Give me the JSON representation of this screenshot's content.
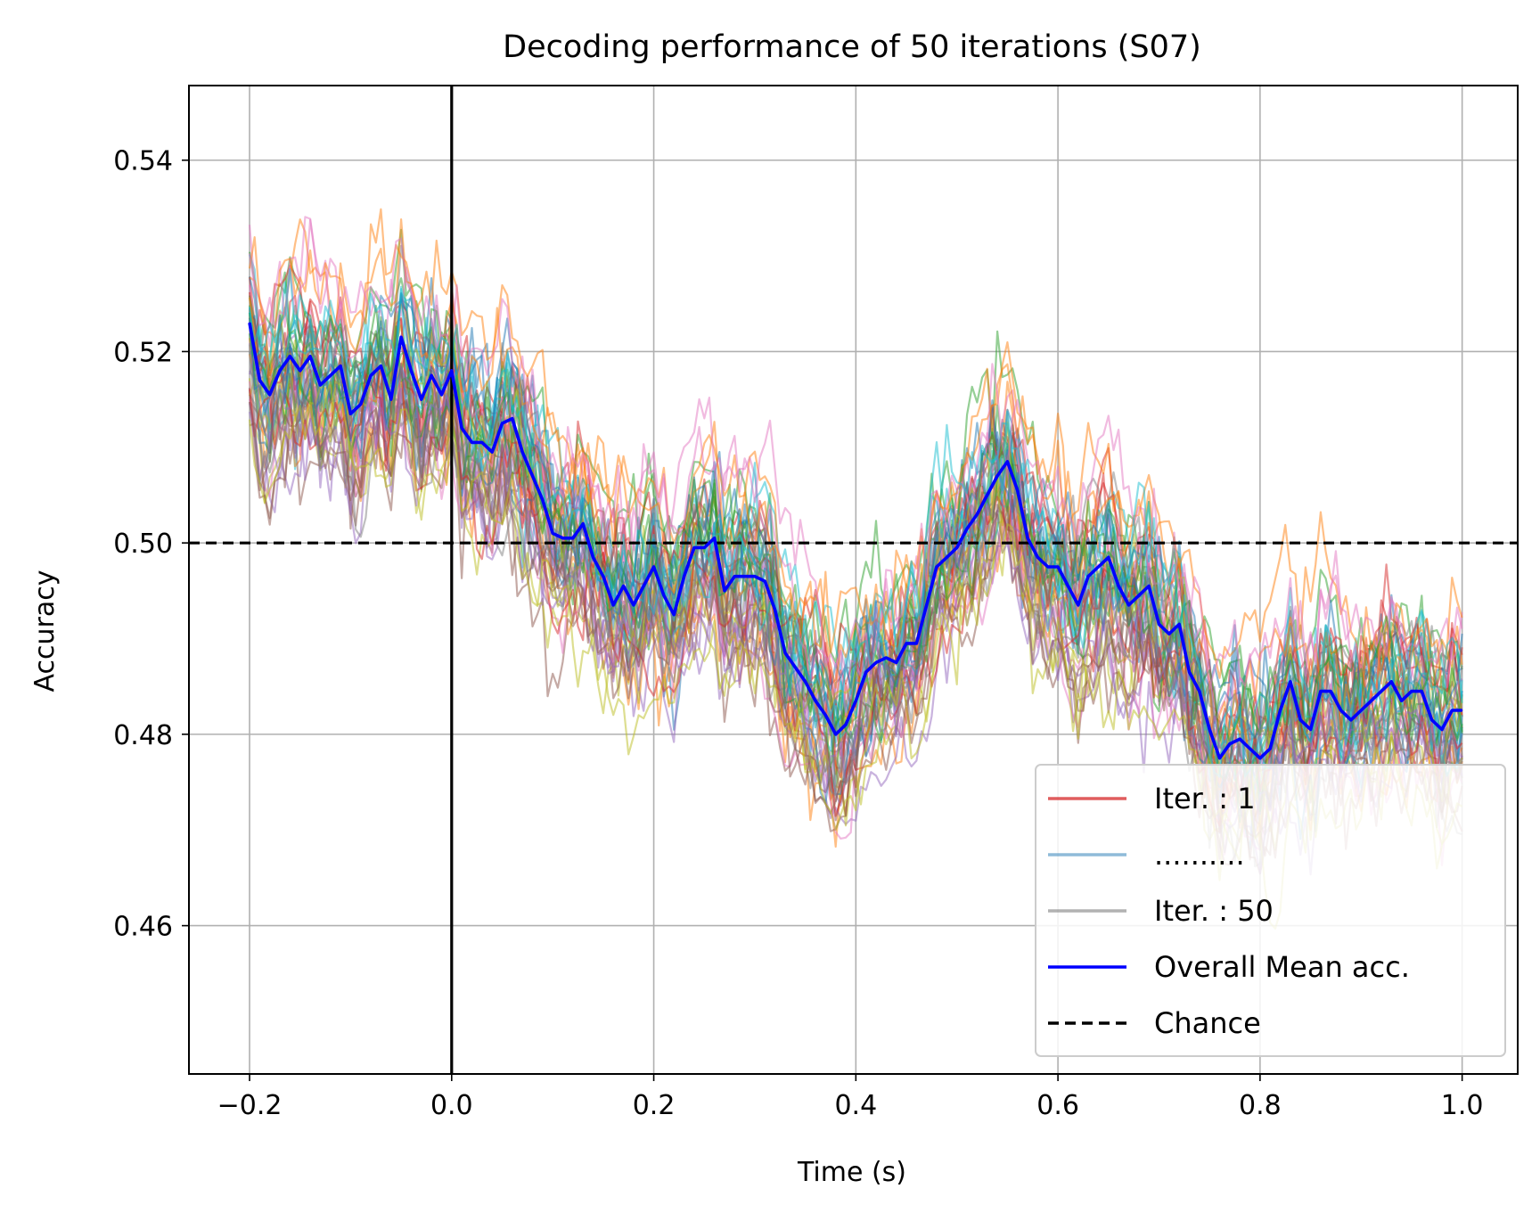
{
  "chart_data": {
    "type": "line",
    "title": "Decoding performance of 50 iterations (S07)",
    "xlabel": "Time (s)",
    "ylabel": "Accuracy",
    "xlim": [
      -0.26,
      1.055
    ],
    "ylim": [
      0.4445,
      0.5478
    ],
    "xticks": [
      -0.2,
      0.0,
      0.2,
      0.4,
      0.6,
      0.8,
      1.0
    ],
    "xtick_labels": [
      "−0.2",
      "0.0",
      "0.2",
      "0.4",
      "0.6",
      "0.8",
      "1.0"
    ],
    "yticks": [
      0.46,
      0.48,
      0.5,
      0.52,
      0.54
    ],
    "ytick_labels": [
      "0.46",
      "0.48",
      "0.50",
      "0.52",
      "0.54"
    ],
    "grid": true,
    "legend_position": "bottom-right",
    "vertical_line_x": 0.0,
    "chance_level": 0.5,
    "iteration_count": 50,
    "time_range": [
      -0.2,
      1.0
    ],
    "iteration_spread": 0.012,
    "iteration_colors": [
      "#d62728",
      "#1f77b4",
      "#ff7f0e",
      "#2ca02c",
      "#9467bd",
      "#8c564b",
      "#e377c2",
      "#7f7f7f",
      "#bcbd22",
      "#17becf"
    ],
    "mean_color": "#0000ff",
    "legend": [
      {
        "label": "Iter. : 1",
        "color": "#d62728",
        "style": "solid",
        "opacity": 0.75
      },
      {
        "label": "..........",
        "color": "#1f77b4",
        "style": "solid",
        "opacity": 0.5
      },
      {
        "label": "Iter. : 50",
        "color": "#7f7f7f",
        "style": "solid",
        "opacity": 0.6
      },
      {
        "label": "Overall Mean acc.",
        "color": "#0000ff",
        "style": "solid",
        "opacity": 1
      },
      {
        "label": "Chance",
        "color": "#000000",
        "style": "dashed",
        "opacity": 1
      }
    ],
    "series": [
      {
        "name": "Overall Mean acc.",
        "x": [
          -0.2,
          -0.19,
          -0.18,
          -0.17,
          -0.16,
          -0.15,
          -0.14,
          -0.13,
          -0.12,
          -0.11,
          -0.1,
          -0.09,
          -0.08,
          -0.07,
          -0.06,
          -0.05,
          -0.04,
          -0.03,
          -0.02,
          -0.01,
          0.0,
          0.01,
          0.02,
          0.03,
          0.04,
          0.05,
          0.06,
          0.07,
          0.08,
          0.09,
          0.1,
          0.11,
          0.12,
          0.13,
          0.14,
          0.15,
          0.16,
          0.17,
          0.18,
          0.19,
          0.2,
          0.21,
          0.22,
          0.23,
          0.24,
          0.25,
          0.26,
          0.27,
          0.28,
          0.29,
          0.3,
          0.31,
          0.32,
          0.33,
          0.34,
          0.35,
          0.36,
          0.37,
          0.38,
          0.39,
          0.4,
          0.41,
          0.42,
          0.43,
          0.44,
          0.45,
          0.46,
          0.47,
          0.48,
          0.49,
          0.5,
          0.51,
          0.52,
          0.53,
          0.54,
          0.55,
          0.56,
          0.57,
          0.58,
          0.59,
          0.6,
          0.61,
          0.62,
          0.63,
          0.64,
          0.65,
          0.66,
          0.67,
          0.68,
          0.69,
          0.7,
          0.71,
          0.72,
          0.73,
          0.74,
          0.75,
          0.76,
          0.77,
          0.78,
          0.79,
          0.8,
          0.81,
          0.82,
          0.83,
          0.84,
          0.85,
          0.86,
          0.87,
          0.88,
          0.89,
          0.9,
          0.91,
          0.92,
          0.93,
          0.94,
          0.95,
          0.96,
          0.97,
          0.98,
          0.99,
          1.0
        ],
        "values": [
          0.523,
          0.517,
          0.5155,
          0.518,
          0.5195,
          0.518,
          0.5195,
          0.5165,
          0.5175,
          0.5185,
          0.5135,
          0.5145,
          0.5175,
          0.5185,
          0.515,
          0.5215,
          0.518,
          0.515,
          0.5175,
          0.5155,
          0.518,
          0.512,
          0.5105,
          0.5105,
          0.5095,
          0.5125,
          0.513,
          0.5095,
          0.507,
          0.5045,
          0.501,
          0.5005,
          0.5005,
          0.502,
          0.4985,
          0.4965,
          0.4935,
          0.4955,
          0.4935,
          0.4955,
          0.4975,
          0.4945,
          0.4925,
          0.4965,
          0.4995,
          0.4995,
          0.5005,
          0.495,
          0.4965,
          0.4965,
          0.4965,
          0.496,
          0.493,
          0.4885,
          0.487,
          0.4855,
          0.4835,
          0.482,
          0.48,
          0.481,
          0.4835,
          0.4865,
          0.4875,
          0.488,
          0.4875,
          0.4895,
          0.4895,
          0.4935,
          0.4975,
          0.4985,
          0.4995,
          0.5015,
          0.503,
          0.505,
          0.507,
          0.5085,
          0.5055,
          0.5005,
          0.4985,
          0.4975,
          0.4975,
          0.4955,
          0.4935,
          0.4965,
          0.4975,
          0.4985,
          0.4955,
          0.4935,
          0.4945,
          0.4955,
          0.4915,
          0.4905,
          0.4915,
          0.4865,
          0.4845,
          0.4805,
          0.4775,
          0.479,
          0.4795,
          0.4785,
          0.4775,
          0.4785,
          0.4825,
          0.4855,
          0.4815,
          0.4805,
          0.4845,
          0.4845,
          0.4825,
          0.4815,
          0.4825,
          0.4835,
          0.4845,
          0.4855,
          0.4835,
          0.4845,
          0.4845,
          0.4815,
          0.4805,
          0.4825,
          0.4825
        ]
      }
    ]
  }
}
